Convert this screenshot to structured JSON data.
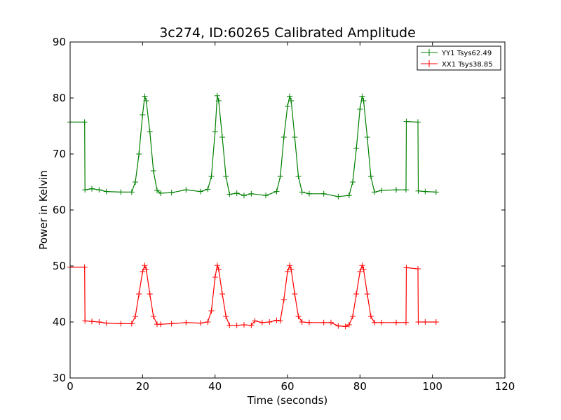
{
  "chart_data": {
    "type": "line",
    "title": "3c274, ID:60265 Calibrated Amplitude",
    "xlabel": "Time (seconds)",
    "ylabel": "Power in Kelvin",
    "xlim": [
      0,
      120
    ],
    "ylim": [
      30,
      90
    ],
    "xticks": [
      0,
      20,
      40,
      60,
      80,
      100,
      120
    ],
    "yticks": [
      30,
      40,
      50,
      60,
      70,
      80,
      90
    ],
    "grid": false,
    "legend_position": "top-right",
    "marker": "+",
    "series": [
      {
        "name": "YY1 Tsys62.49",
        "color": "#008000",
        "x": [
          0,
          4,
          4.1,
          6,
          8,
          10,
          14,
          17,
          18,
          19,
          20,
          20.6,
          21,
          22,
          23,
          24,
          25,
          28,
          32,
          36,
          38,
          39,
          40,
          40.6,
          41,
          42,
          43,
          44,
          46,
          48,
          50,
          54,
          57,
          58,
          59,
          60,
          60.6,
          61,
          62,
          63,
          64,
          66,
          70,
          74,
          77,
          78,
          79,
          80,
          80.6,
          81,
          82,
          83,
          84,
          86,
          90,
          92.7,
          92.8,
          96,
          96.1,
          98,
          101
        ],
        "y": [
          75.7,
          75.7,
          63.6,
          63.8,
          63.6,
          63.3,
          63.2,
          63.2,
          65,
          70,
          77,
          80.3,
          79.5,
          74,
          67,
          63.5,
          63,
          63.1,
          63.6,
          63.3,
          63.7,
          66,
          74,
          80.4,
          79.5,
          73,
          66,
          62.8,
          63.0,
          62.6,
          62.9,
          62.6,
          63.3,
          66,
          73,
          78.5,
          80.3,
          79.5,
          73,
          66,
          63.2,
          62.9,
          62.9,
          62.4,
          62.6,
          65,
          71,
          78,
          80.3,
          79.5,
          73,
          66,
          63.2,
          63.5,
          63.6,
          63.6,
          75.8,
          75.7,
          63.4,
          63.3,
          63.2
        ]
      },
      {
        "name": "XX1 Tsys38.85",
        "color": "#ff0000",
        "x": [
          0,
          4,
          4.1,
          6,
          8,
          10,
          14,
          17,
          18,
          19,
          20,
          20.6,
          21,
          22,
          23,
          24,
          25,
          28,
          32,
          36,
          38,
          39,
          40,
          40.6,
          41,
          42,
          43,
          44,
          46,
          48,
          50,
          51,
          53,
          55,
          57,
          58,
          59,
          60,
          60.6,
          61,
          62,
          63,
          64,
          66,
          70,
          72,
          74,
          76,
          77,
          78,
          79,
          80,
          80.6,
          81,
          82,
          83,
          84,
          86,
          90,
          92.7,
          92.8,
          96,
          96.1,
          98,
          101
        ],
        "y": [
          49.8,
          49.8,
          40.2,
          40.1,
          40.0,
          39.8,
          39.7,
          39.7,
          41,
          45,
          49,
          50.1,
          49.4,
          45,
          41,
          39.6,
          39.6,
          39.7,
          39.9,
          39.8,
          40.0,
          42,
          48,
          50.1,
          49.4,
          45,
          41,
          39.4,
          39.4,
          39.5,
          39.4,
          40.2,
          39.9,
          40.0,
          40.3,
          40.2,
          44,
          49,
          50.1,
          49.4,
          45,
          41,
          40.0,
          39.9,
          39.9,
          39.9,
          39.3,
          39.2,
          39.5,
          41,
          45,
          49,
          50.1,
          49.4,
          45,
          41,
          39.9,
          39.9,
          39.9,
          39.9,
          49.7,
          49.5,
          40.0,
          40.0,
          40.0
        ]
      }
    ]
  }
}
